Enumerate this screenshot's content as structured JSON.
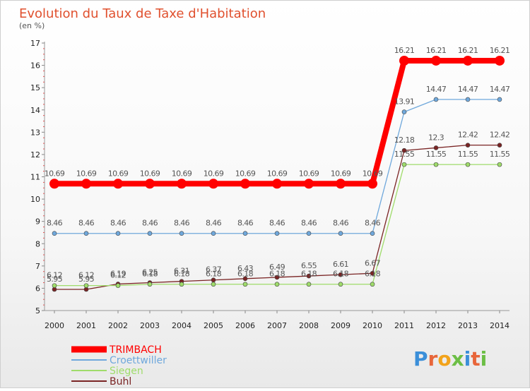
{
  "chart_data": {
    "type": "line",
    "title": "Evolution du Taux de Taxe d'Habitation",
    "subtitle": "(en %)",
    "xlabel": "",
    "ylabel": "",
    "categories": [
      "2000",
      "2001",
      "2002",
      "2003",
      "2004",
      "2005",
      "2006",
      "2007",
      "2008",
      "2009",
      "2010",
      "2011",
      "2012",
      "2013",
      "2014"
    ],
    "ylim": [
      5,
      17
    ],
    "yticks": [
      "5",
      "6",
      "7",
      "8",
      "9",
      "10",
      "11",
      "12",
      "13",
      "14",
      "15",
      "16",
      "17"
    ],
    "grid": false,
    "legend_position": "bottom-left",
    "series": [
      {
        "name": "TRIMBACH",
        "color": "#ff0000",
        "values": [
          10.69,
          10.69,
          10.69,
          10.69,
          10.69,
          10.69,
          10.69,
          10.69,
          10.69,
          10.69,
          10.69,
          16.21,
          16.21,
          16.21,
          16.21
        ],
        "labels": [
          "10.69",
          "10.69",
          "10.69",
          "10.69",
          "10.69",
          "10.69",
          "10.69",
          "10.69",
          "10.69",
          "10.69",
          "10.69",
          "16.21",
          "16.21",
          "16.21",
          "16.21"
        ]
      },
      {
        "name": "Croettwiller",
        "color": "#6fa8dc",
        "values": [
          8.46,
          8.46,
          8.46,
          8.46,
          8.46,
          8.46,
          8.46,
          8.46,
          8.46,
          8.46,
          8.46,
          13.91,
          14.47,
          14.47,
          14.47
        ],
        "labels": [
          "8.46",
          "8.46",
          "8.46",
          "8.46",
          "8.46",
          "8.46",
          "8.46",
          "8.46",
          "8.46",
          "8.46",
          "8.46",
          "13.91",
          "14.47",
          "14.47",
          "14.47"
        ]
      },
      {
        "name": "Siegen",
        "color": "#9fdc6a",
        "values": [
          6.12,
          6.12,
          6.12,
          6.18,
          6.18,
          6.18,
          6.18,
          6.18,
          6.18,
          6.18,
          6.18,
          11.55,
          11.55,
          11.55,
          11.55
        ],
        "labels": [
          "6.12",
          "6.12",
          "6.12",
          "6.18",
          "6.18",
          "6.18",
          "6.18",
          "6.18",
          "6.18",
          "6.18",
          "6.18",
          "11.55",
          "11.55",
          "11.55",
          "11.55"
        ]
      },
      {
        "name": "Buhl",
        "color": "#7a2424",
        "values": [
          5.95,
          5.95,
          6.19,
          6.25,
          6.31,
          6.37,
          6.43,
          6.49,
          6.55,
          6.61,
          6.67,
          12.18,
          12.3,
          12.42,
          12.42
        ],
        "labels": [
          "5.95",
          "5.95",
          "6.19",
          "6.25",
          "6.31",
          "6.37",
          "6.43",
          "6.49",
          "6.55",
          "6.61",
          "6.67",
          "12.18",
          "12.3",
          "12.42",
          "12.42"
        ]
      }
    ]
  },
  "logo": {
    "text": "Proxiti",
    "colors": [
      "#3b8fd9",
      "#e8663a",
      "#f2a31b",
      "#6cbe45",
      "#3b8fd9",
      "#e8663a",
      "#6cbe45"
    ]
  }
}
